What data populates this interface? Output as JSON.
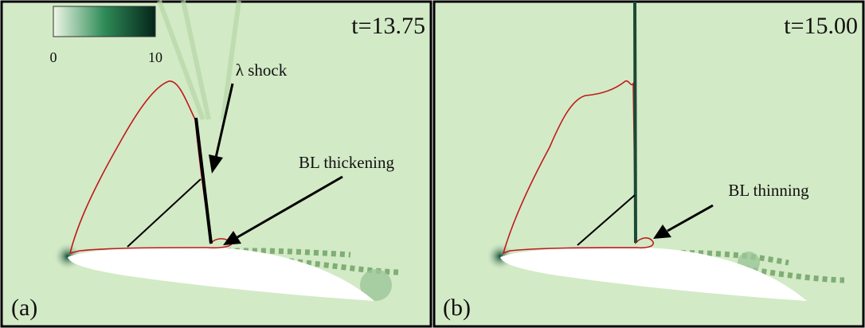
{
  "colorbar": {
    "min": "0",
    "max": "10"
  },
  "panels": [
    {
      "label": "(a)",
      "time": "t=13.75",
      "annotations": [
        "λ shock",
        "BL thickening"
      ]
    },
    {
      "label": "(b)",
      "time": "t=15.00",
      "annotations": [
        "BL thinning"
      ]
    }
  ]
}
